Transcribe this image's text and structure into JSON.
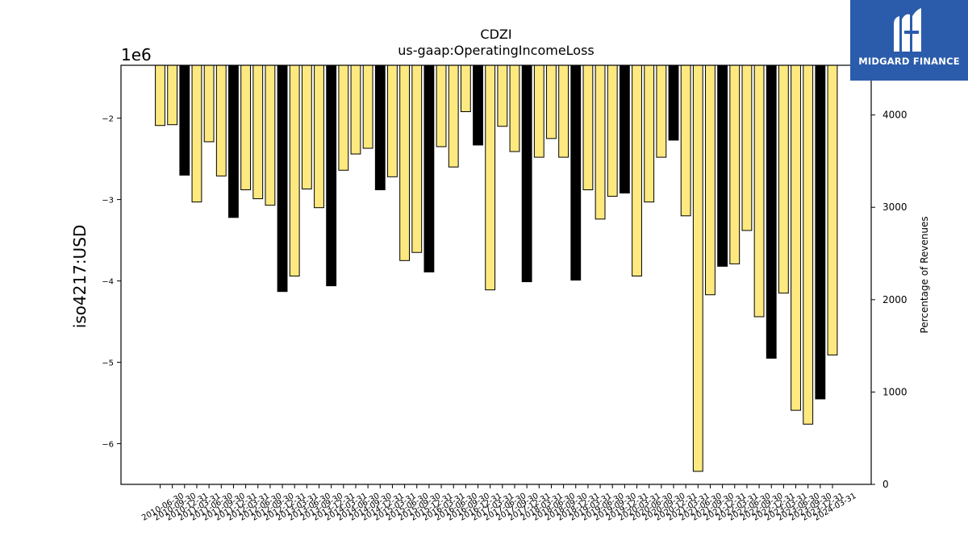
{
  "chart_data": {
    "type": "bar",
    "title": "CDZI",
    "subtitle": "us-gaap:OperatingIncomeLoss",
    "ylabel": "iso4217:USD",
    "y_offset_label": "1e6",
    "y2label": "Percentage of Revenues",
    "ylim": [
      -6.5,
      -1.35
    ],
    "y_ticks": [
      -6,
      -5,
      -4,
      -3,
      -2
    ],
    "y2_ticks": [
      0,
      1000,
      2000,
      3000,
      4000
    ],
    "grid": false,
    "legend": "none",
    "categories": [
      "2010-06-30",
      "2010-09-30",
      "2010-12-31",
      "2011-03-31",
      "2011-06-30",
      "2011-09-30",
      "2011-12-31",
      "2012-03-31",
      "2012-06-30",
      "2012-09-30",
      "2012-12-31",
      "2013-03-31",
      "2013-06-30",
      "2013-09-30",
      "2013-12-31",
      "2014-03-31",
      "2014-06-30",
      "2014-09-30",
      "2014-12-31",
      "2015-03-31",
      "2015-06-30",
      "2015-09-30",
      "2015-12-31",
      "2016-03-31",
      "2016-06-30",
      "2016-09-30",
      "2016-12-31",
      "2017-03-31",
      "2017-06-30",
      "2017-09-30",
      "2017-12-31",
      "2018-03-31",
      "2018-06-30",
      "2018-09-30",
      "2018-12-31",
      "2019-03-31",
      "2019-06-30",
      "2019-09-30",
      "2019-12-31",
      "2020-03-31",
      "2020-06-30",
      "2020-09-30",
      "2020-12-31",
      "2021-03-31",
      "2021-06-30",
      "2021-09-30",
      "2021-12-31",
      "2022-03-31",
      "2022-06-30",
      "2022-09-30",
      "2022-12-31",
      "2023-03-31",
      "2023-06-30",
      "2023-09-30",
      "2023-12-31",
      "2024-03-31"
    ],
    "values": [
      -2.09,
      -2.08,
      -2.7,
      -3.03,
      -2.29,
      -2.71,
      -3.22,
      -2.88,
      -2.99,
      -3.07,
      -4.13,
      -3.94,
      -2.87,
      -3.1,
      -4.06,
      -2.64,
      -2.44,
      -2.37,
      -2.88,
      -2.72,
      -3.75,
      -3.65,
      -3.89,
      -2.35,
      -2.6,
      -1.92,
      -2.33,
      -4.11,
      -2.1,
      -2.41,
      -4.01,
      -2.48,
      -2.25,
      -2.48,
      -3.99,
      -2.88,
      -3.24,
      -2.96,
      -2.92,
      -3.94,
      -3.03,
      -2.48,
      -2.27,
      -3.2,
      -6.34,
      -4.17,
      -3.82,
      -3.79,
      -3.38,
      -4.44,
      -4.95,
      -4.15,
      -5.59,
      -5.76,
      -5.45,
      -4.91
    ],
    "highlight_q4": true,
    "colors": {
      "default": "#fde980",
      "q4": "#000000",
      "edge": "#000000"
    }
  },
  "logo": {
    "name": "MIDGARD FINANCE",
    "bg": "#2b5cab",
    "fg": "#ffffff"
  }
}
